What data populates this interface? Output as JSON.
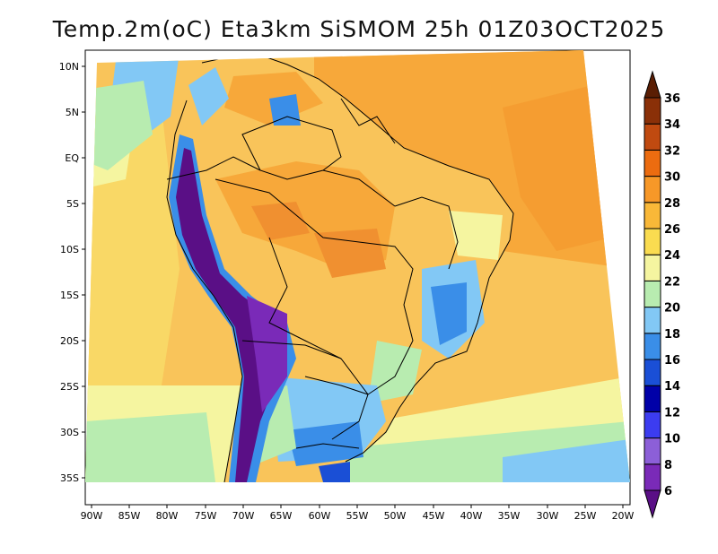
{
  "title": "Temp.2m(oC) Eta3km SiSMOM 25h 01Z03OCT2025",
  "map": {
    "lat_ticks": [
      "10N",
      "5N",
      "EQ",
      "5S",
      "10S",
      "15S",
      "20S",
      "25S",
      "30S",
      "35S"
    ],
    "lon_ticks": [
      "90W",
      "85W",
      "80W",
      "75W",
      "70W",
      "65W",
      "60W",
      "55W",
      "50W",
      "45W",
      "40W",
      "35W",
      "30W",
      "25W",
      "20W"
    ]
  },
  "colorbar": {
    "labels": [
      "6",
      "8",
      "10",
      "12",
      "14",
      "16",
      "18",
      "20",
      "22",
      "24",
      "26",
      "28",
      "30",
      "32",
      "34",
      "36"
    ],
    "colors": [
      "#5a0f86",
      "#7a2ab8",
      "#8c5fd8",
      "#3c3cf0",
      "#0000a8",
      "#1a4fd6",
      "#3a8ee8",
      "#82c8f5",
      "#b8ecb0",
      "#f5f5a0",
      "#fadc50",
      "#f9b838",
      "#f79828",
      "#ec6c10",
      "#c04a10",
      "#8a3008",
      "#5a1e04"
    ]
  }
}
